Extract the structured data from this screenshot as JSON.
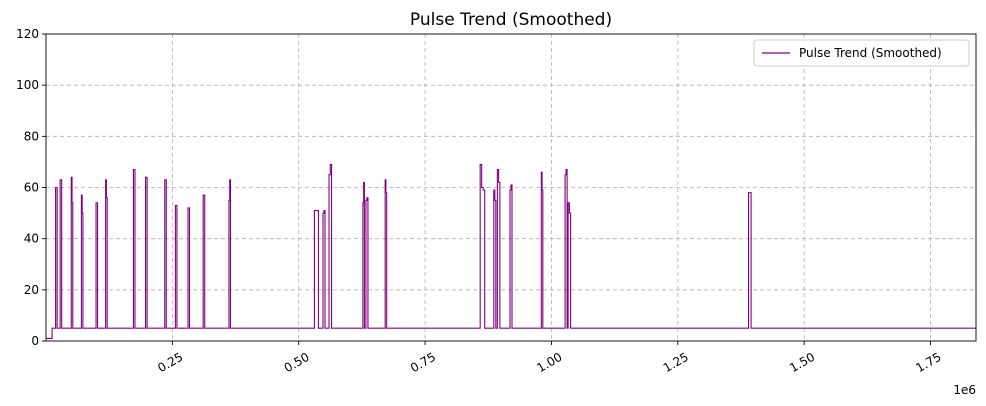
{
  "chart_data": {
    "type": "line",
    "title": "Pulse Trend (Smoothed)",
    "xlabel": "",
    "ylabel": "",
    "x_offset_label": "1e6",
    "xlim": [
      0,
      1840000
    ],
    "ylim": [
      0,
      120
    ],
    "x_ticks": [
      250000,
      500000,
      750000,
      1000000,
      1250000,
      1500000,
      1750000
    ],
    "x_tick_labels": [
      "0.25",
      "0.50",
      "0.75",
      "1.00",
      "1.25",
      "1.50",
      "1.75"
    ],
    "y_ticks": [
      0,
      20,
      40,
      60,
      80,
      100,
      120
    ],
    "y_tick_labels": [
      "0",
      "20",
      "40",
      "60",
      "80",
      "100",
      "120"
    ],
    "grid": true,
    "legend_position": "top-right",
    "baseline": 5,
    "initial_value": 1,
    "initial_end_x": 12000,
    "series": [
      {
        "name": "Pulse Trend (Smoothed)",
        "color": "#800080",
        "pulses": [
          {
            "x": 19000,
            "w": 3000,
            "values": [
              60
            ]
          },
          {
            "x": 28000,
            "w": 3000,
            "values": [
              63
            ]
          },
          {
            "x": 50000,
            "w": 3000,
            "values": [
              64,
              54
            ]
          },
          {
            "x": 70000,
            "w": 3000,
            "values": [
              57,
              50
            ]
          },
          {
            "x": 99000,
            "w": 3000,
            "values": [
              54
            ]
          },
          {
            "x": 118000,
            "w": 3000,
            "values": [
              63,
              56
            ]
          },
          {
            "x": 173000,
            "w": 3000,
            "values": [
              67
            ]
          },
          {
            "x": 197000,
            "w": 3000,
            "values": [
              64
            ]
          },
          {
            "x": 235000,
            "w": 3000,
            "values": [
              63
            ]
          },
          {
            "x": 256000,
            "w": 3000,
            "values": [
              53
            ]
          },
          {
            "x": 281000,
            "w": 3000,
            "values": [
              52
            ]
          },
          {
            "x": 311000,
            "w": 3000,
            "values": [
              57
            ]
          },
          {
            "x": 362000,
            "w": 3000,
            "values": [
              55,
              63
            ]
          },
          {
            "x": 531000,
            "w": 8000,
            "values": [
              51
            ]
          },
          {
            "x": 548000,
            "w": 4000,
            "values": [
              50,
              51
            ]
          },
          {
            "x": 560000,
            "w": 5000,
            "values": [
              65,
              69
            ]
          },
          {
            "x": 627000,
            "w": 3000,
            "values": [
              54,
              62
            ]
          },
          {
            "x": 633000,
            "w": 4000,
            "values": [
              55,
              56
            ]
          },
          {
            "x": 671000,
            "w": 3000,
            "values": [
              63,
              58
            ]
          },
          {
            "x": 859000,
            "w": 9000,
            "values": [
              69,
              60,
              59
            ]
          },
          {
            "x": 886000,
            "w": 4000,
            "values": [
              59,
              55
            ]
          },
          {
            "x": 893000,
            "w": 5000,
            "values": [
              67,
              62
            ]
          },
          {
            "x": 918000,
            "w": 4000,
            "values": [
              59,
              61
            ]
          },
          {
            "x": 980000,
            "w": 3000,
            "values": [
              66,
              59
            ]
          },
          {
            "x": 1027000,
            "w": 4000,
            "values": [
              65,
              67
            ]
          },
          {
            "x": 1033000,
            "w": 5000,
            "values": [
              54,
              50
            ]
          },
          {
            "x": 1390000,
            "w": 5000,
            "values": [
              58
            ]
          }
        ]
      }
    ]
  }
}
